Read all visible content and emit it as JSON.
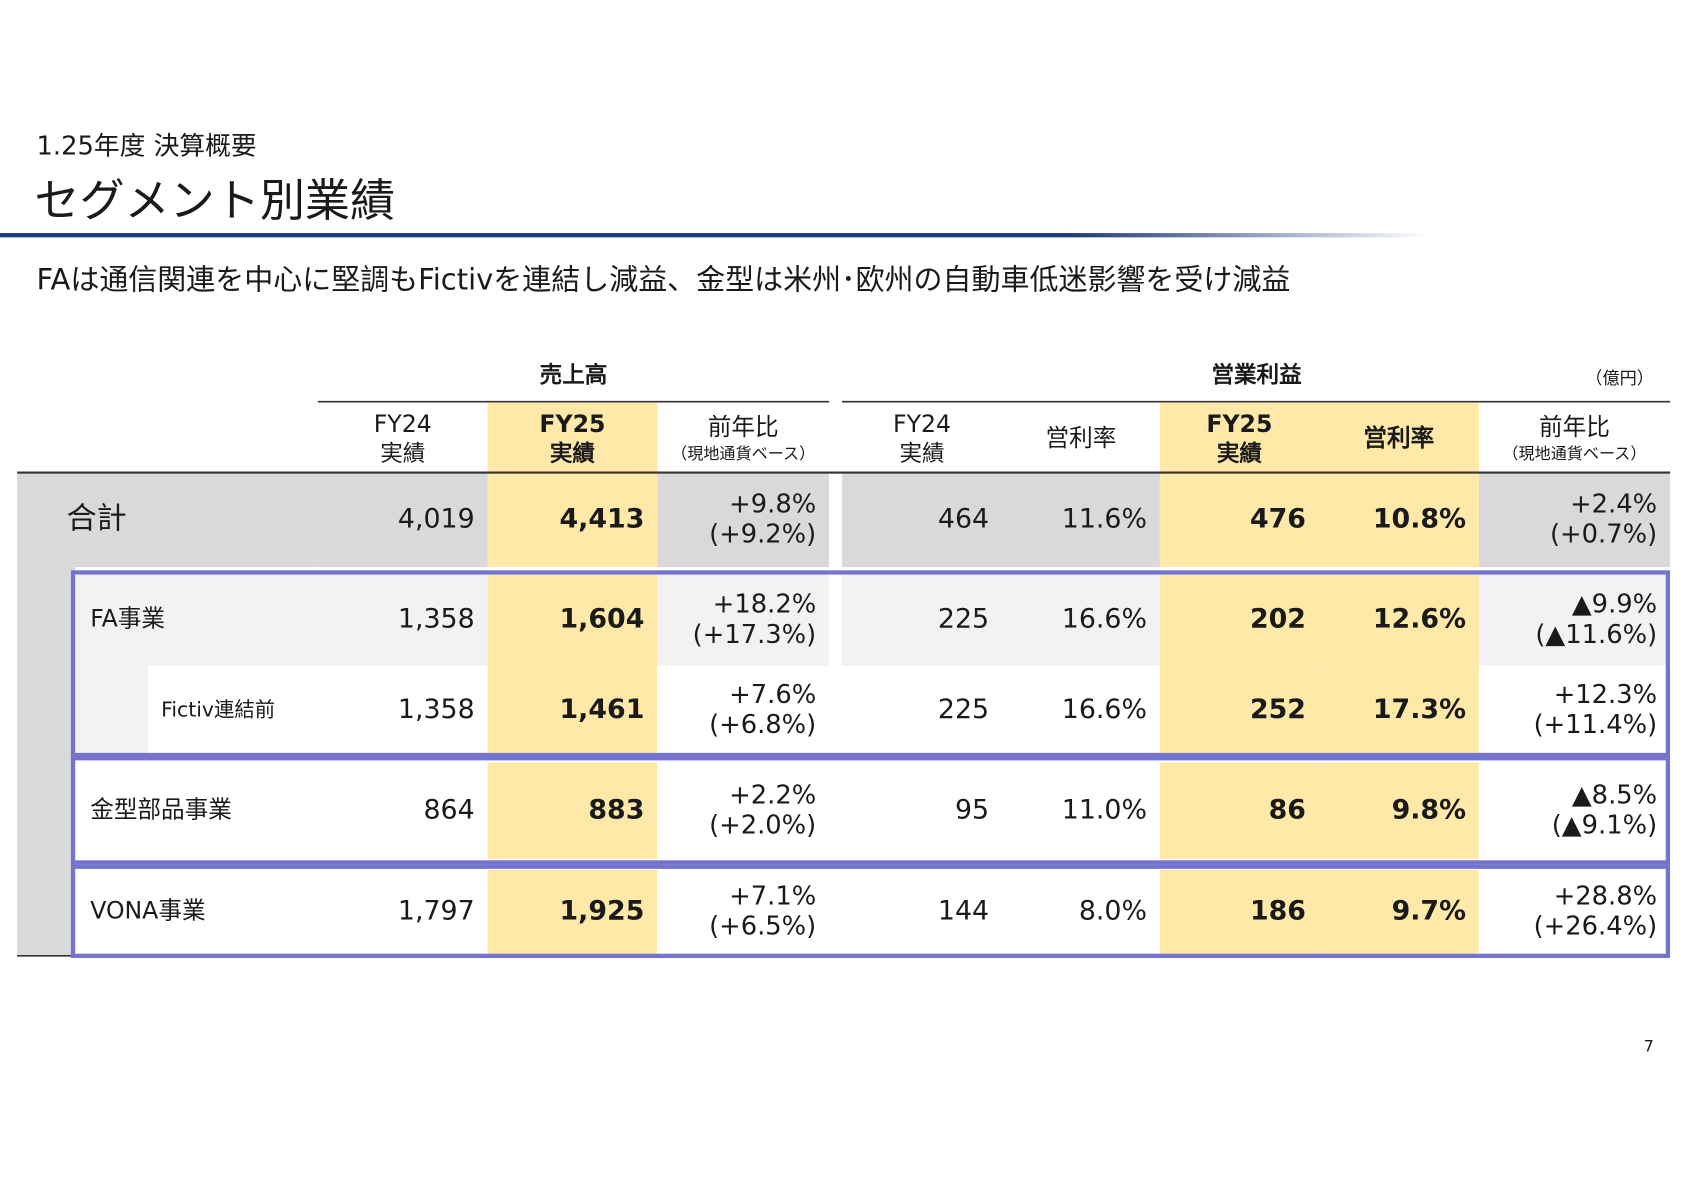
{
  "header": {
    "section": "1.25年度 決算概要",
    "title": "セグメント別業績",
    "subtitle": "FAは通信関連を中心に堅調もFictivを連結し減益、金型は米州･欧州の自動車低迷影響を受け減益"
  },
  "table": {
    "groups": [
      "売上高",
      "営業利益"
    ],
    "unit": "（億円）",
    "columns": [
      [
        "FY24",
        "実績"
      ],
      [
        "FY25",
        "実績"
      ],
      [
        "前年比",
        "（現地通貨ベース）"
      ],
      [
        "FY24",
        "実績"
      ],
      [
        "営利率"
      ],
      [
        "FY25",
        "実績"
      ],
      [
        "営利率"
      ],
      [
        "前年比",
        "（現地通貨ベース）"
      ]
    ],
    "rows": [
      {
        "label": "合計",
        "cells": [
          [
            "4,019"
          ],
          [
            "4,413"
          ],
          [
            "+9.8%",
            "(+9.2%)"
          ],
          [
            "464"
          ],
          [
            "11.6%"
          ],
          [
            "476"
          ],
          [
            "10.8%"
          ],
          [
            "+2.4%",
            "(+0.7%)"
          ]
        ]
      },
      {
        "label": "FA事業",
        "cells": [
          [
            "1,358"
          ],
          [
            "1,604"
          ],
          [
            "+18.2%",
            "(+17.3%)"
          ],
          [
            "225"
          ],
          [
            "16.6%"
          ],
          [
            "202"
          ],
          [
            "12.6%"
          ],
          [
            "▲9.9%",
            "(▲11.6%)"
          ]
        ]
      },
      {
        "label": "Fictiv連結前",
        "cells": [
          [
            "1,358"
          ],
          [
            "1,461"
          ],
          [
            "+7.6%",
            "(+6.8%)"
          ],
          [
            "225"
          ],
          [
            "16.6%"
          ],
          [
            "252"
          ],
          [
            "17.3%"
          ],
          [
            "+12.3%",
            "(+11.4%)"
          ]
        ]
      },
      {
        "label": "金型部品事業",
        "cells": [
          [
            "864"
          ],
          [
            "883"
          ],
          [
            "+2.2%",
            "(+2.0%)"
          ],
          [
            "95"
          ],
          [
            "11.0%"
          ],
          [
            "86"
          ],
          [
            "9.8%"
          ],
          [
            "▲8.5%",
            "(▲9.1%)"
          ]
        ]
      },
      {
        "label": "VONA事業",
        "cells": [
          [
            "1,797"
          ],
          [
            "1,925"
          ],
          [
            "+7.1%",
            "(+6.5%)"
          ],
          [
            "144"
          ],
          [
            "8.0%"
          ],
          [
            "186"
          ],
          [
            "9.7%"
          ],
          [
            "+28.8%",
            "(+26.4%)"
          ]
        ]
      }
    ]
  },
  "page_number": "7"
}
